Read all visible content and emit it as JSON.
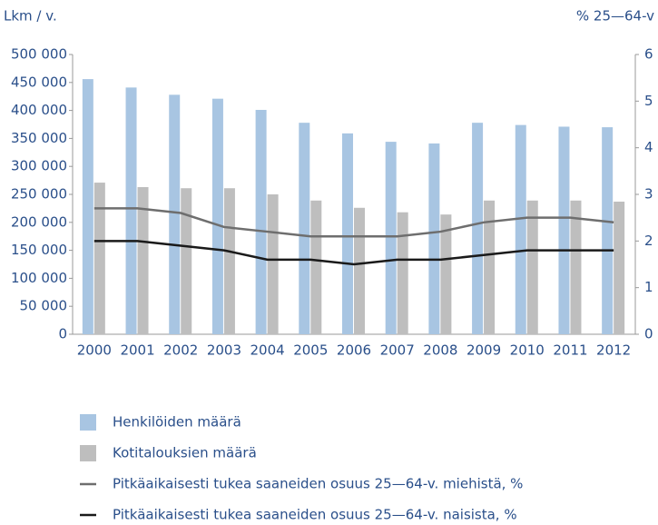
{
  "chart_data": {
    "type": "bar",
    "y_axis_label": "Lkm / v.",
    "y2_axis_label": "% 25—64-v",
    "categories": [
      "2000",
      "2001",
      "2002",
      "2003",
      "2004",
      "2005",
      "2006",
      "2007",
      "2008",
      "2009",
      "2010",
      "2011",
      "2012"
    ],
    "series": [
      {
        "name": "Henkilöiden määrä",
        "type": "bar",
        "color": "#a8c5e2",
        "values": [
          456000,
          441000,
          428000,
          421000,
          401000,
          378000,
          359000,
          344000,
          341000,
          378000,
          374000,
          371000,
          370000
        ]
      },
      {
        "name": "Kotitalouksien määrä",
        "type": "bar",
        "color": "#bebebe",
        "values": [
          271000,
          263000,
          261000,
          261000,
          250000,
          239000,
          226000,
          218000,
          214000,
          239000,
          239000,
          239000,
          237000
        ]
      },
      {
        "name": "Pitkäaikaisesti tukea saaneiden osuus 25—64-v. miehistä, %",
        "type": "line",
        "axis": "y2",
        "color": "#6e6e6e",
        "values": [
          2.7,
          2.7,
          2.6,
          2.3,
          2.2,
          2.1,
          2.1,
          2.1,
          2.2,
          2.4,
          2.5,
          2.5,
          2.4
        ]
      },
      {
        "name": "Pitkäaikaisesti tukea saaneiden osuus 25—64-v. naisista, %",
        "type": "line",
        "axis": "y2",
        "color": "#1a1a1a",
        "values": [
          2.0,
          2.0,
          1.9,
          1.8,
          1.6,
          1.6,
          1.5,
          1.6,
          1.6,
          1.7,
          1.8,
          1.8,
          1.8
        ]
      }
    ],
    "ylim": [
      0,
      500000
    ],
    "yticks": [
      0,
      {
        "value": 50000,
        "label": "50 000"
      },
      {
        "value": 100000,
        "label": "100 000"
      },
      {
        "value": 150000,
        "label": "150 000"
      },
      {
        "value": 200000,
        "label": "200 000"
      },
      {
        "value": 250000,
        "label": "250 000"
      },
      {
        "value": 300000,
        "label": "300 000"
      },
      {
        "value": 350000,
        "label": "350 000"
      },
      {
        "value": 400000,
        "label": "400 000"
      },
      {
        "value": 450000,
        "label": "450 000"
      },
      {
        "value": 500000,
        "label": "500 000"
      }
    ],
    "y2lim": [
      0,
      6
    ],
    "y2ticks": [
      0,
      1,
      2,
      3,
      4,
      5,
      6
    ],
    "grid": false
  }
}
